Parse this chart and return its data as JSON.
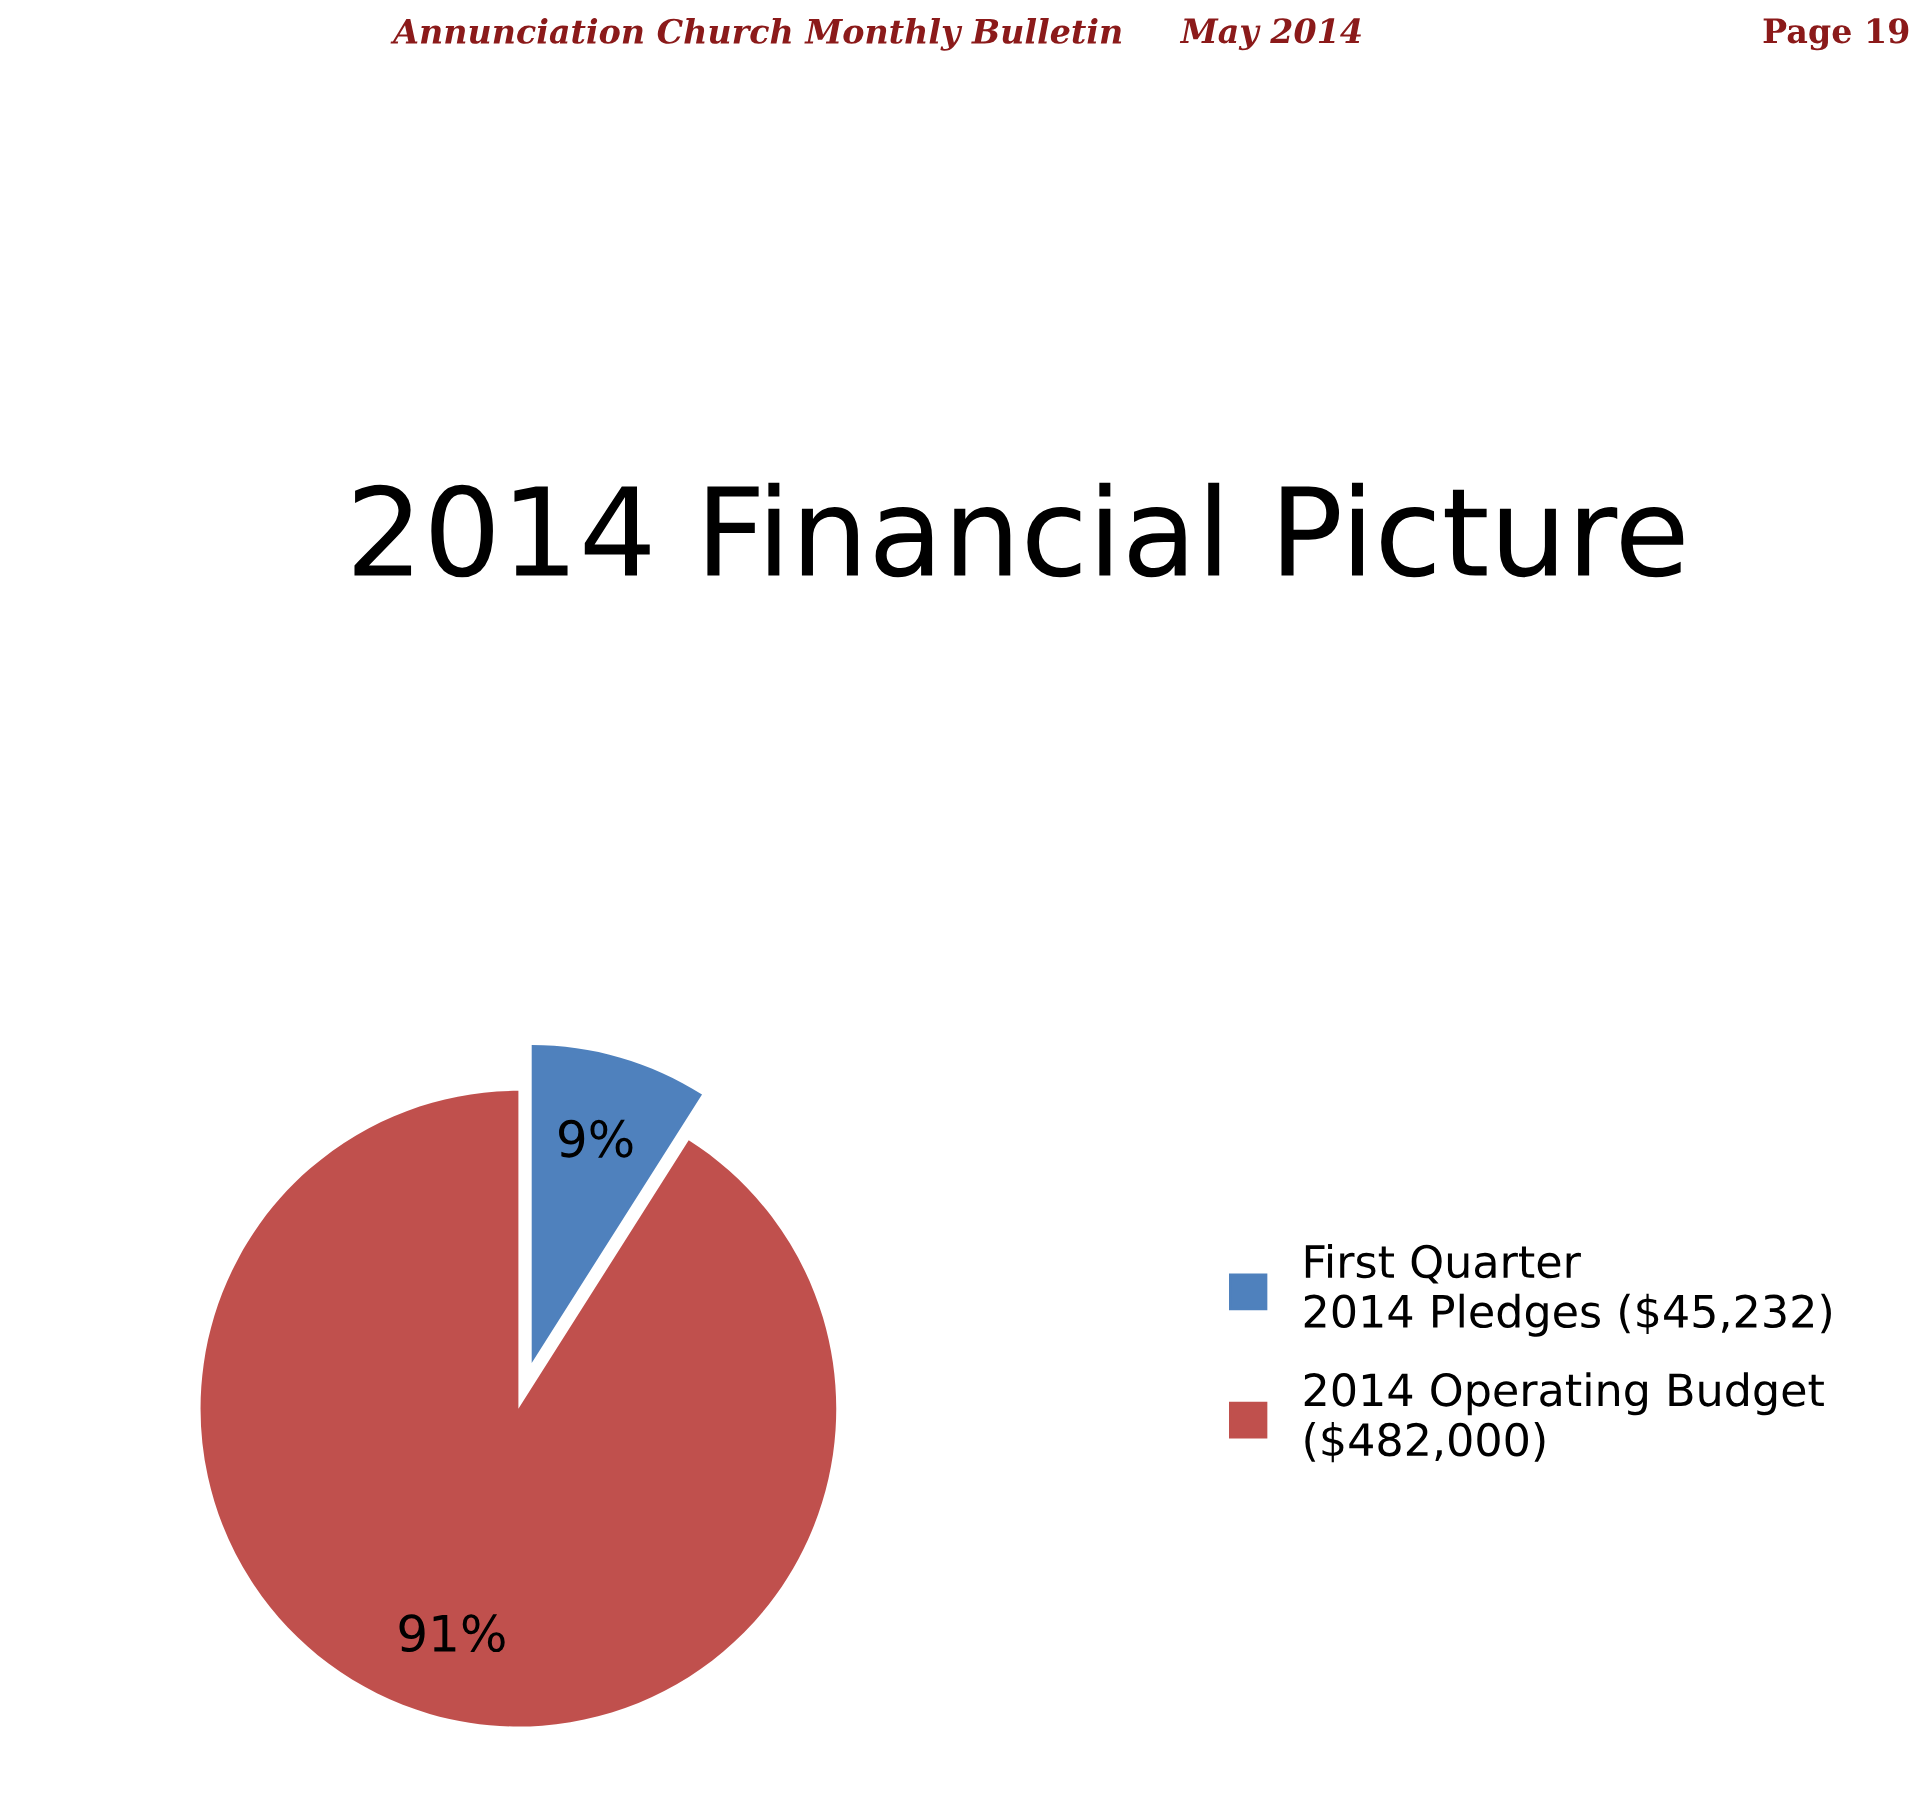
{
  "chart_data": {
    "type": "pie",
    "title": "2014 Financial Picture",
    "categories": [
      "First Quarter  2014 Pledges ($45,232)",
      "2014 Operating Budget ($482,000)"
    ],
    "values": [
      9,
      91
    ],
    "colors": [
      "#4f81bd",
      "#c0504d"
    ],
    "value_labels": [
      "9%",
      "91%"
    ],
    "legend": "right",
    "annotations": [
      "Annunciation Church Monthly Bulletin",
      "May 2014",
      "Page 19"
    ]
  }
}
